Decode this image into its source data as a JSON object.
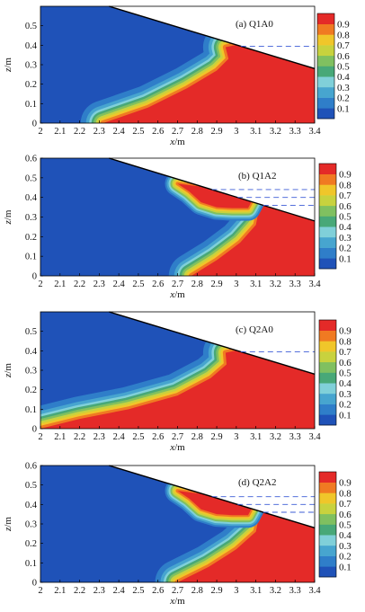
{
  "figure": {
    "colorbar": {
      "ticks": [
        "0.1",
        "0.2",
        "0.3",
        "0.4",
        "0.5",
        "0.6",
        "0.7",
        "0.8",
        "0.9"
      ],
      "colors": [
        "#1f52b8",
        "#2f7ec9",
        "#47a5cf",
        "#80d0d9",
        "#48a878",
        "#80c060",
        "#c8d23e",
        "#f0c62a",
        "#f07a22",
        "#e42a28"
      ]
    },
    "dash_color": "#3b5bd6"
  },
  "chart_data": [
    {
      "type": "contour",
      "panel_label": "(a) Q1A0",
      "xlabel_var": "x",
      "xlabel_unit": "/m",
      "ylabel_var": "z",
      "ylabel_unit": "/m",
      "xlim": [
        2,
        3.4
      ],
      "ylim": [
        0,
        0.6
      ],
      "xticks": [
        "2",
        "2.1",
        "2.2",
        "2.3",
        "2.4",
        "2.5",
        "2.6",
        "2.7",
        "2.8",
        "2.9",
        "3",
        "3.1",
        "3.2",
        "3.3",
        "3.4"
      ],
      "yticks": [
        "0",
        "0.1",
        "0.2",
        "0.3",
        "0.4",
        "0.5"
      ],
      "surface": [
        [
          2.35,
          0.6
        ],
        [
          3.4,
          0.28
        ]
      ],
      "dashed_levels": [
        0.395
      ],
      "interface": [
        [
          2.32,
          0.0
        ],
        [
          2.55,
          0.08
        ],
        [
          2.75,
          0.18
        ],
        [
          2.9,
          0.27
        ],
        [
          2.96,
          0.33
        ],
        [
          2.945,
          0.39
        ]
      ]
    },
    {
      "type": "contour",
      "panel_label": "(b) Q1A2",
      "xlabel_var": "x",
      "xlabel_unit": "/m",
      "ylabel_var": "z",
      "ylabel_unit": "/m",
      "xlim": [
        2,
        3.4
      ],
      "ylim": [
        0,
        0.6
      ],
      "xticks": [
        "2",
        "2.1",
        "2.2",
        "2.3",
        "2.4",
        "2.5",
        "2.6",
        "2.7",
        "2.8",
        "2.9",
        "3",
        "3.1",
        "3.2",
        "3.3",
        "3.4"
      ],
      "yticks": [
        "0",
        "0.1",
        "0.2",
        "0.3",
        "0.4",
        "0.5",
        "0.6"
      ],
      "surface": [
        [
          2.35,
          0.6
        ],
        [
          3.4,
          0.28
        ]
      ],
      "dashed_levels": [
        0.44,
        0.4,
        0.36
      ],
      "interface": [
        [
          2.77,
          0.0
        ],
        [
          2.9,
          0.08
        ],
        [
          3.02,
          0.17
        ],
        [
          3.1,
          0.26
        ],
        [
          3.11,
          0.31
        ],
        [
          3.08,
          0.345
        ]
      ],
      "pocket": [
        [
          2.76,
          0.43
        ],
        [
          2.82,
          0.375
        ],
        [
          2.9,
          0.35
        ],
        [
          2.98,
          0.345
        ],
        [
          3.06,
          0.345
        ]
      ]
    },
    {
      "type": "contour",
      "panel_label": "(c) Q2A0",
      "xlabel_var": "x",
      "xlabel_unit": "/m",
      "ylabel_var": "z",
      "ylabel_unit": "/m",
      "xlim": [
        2,
        3.4
      ],
      "ylim": [
        0,
        0.6
      ],
      "xticks": [
        "2",
        "2.1",
        "2.2",
        "2.3",
        "2.4",
        "2.5",
        "2.6",
        "2.7",
        "2.8",
        "2.9",
        "3",
        "3.1",
        "3.2",
        "3.3",
        "3.4"
      ],
      "yticks": [
        "0",
        "0.1",
        "0.2",
        "0.3",
        "0.4",
        "0.5"
      ],
      "surface": [
        [
          2.35,
          0.6
        ],
        [
          3.4,
          0.28
        ]
      ],
      "dashed_levels": [
        0.395
      ],
      "interface": [
        [
          2.0,
          0.0
        ],
        [
          2.2,
          0.05
        ],
        [
          2.45,
          0.1
        ],
        [
          2.7,
          0.17
        ],
        [
          2.87,
          0.26
        ],
        [
          2.95,
          0.33
        ],
        [
          2.945,
          0.39
        ]
      ]
    },
    {
      "type": "contour",
      "panel_label": "(d) Q2A2",
      "xlabel_var": "x",
      "xlabel_unit": "/m",
      "ylabel_var": "z",
      "ylabel_unit": "/m",
      "xlim": [
        2,
        3.4
      ],
      "ylim": [
        0,
        0.6
      ],
      "xticks": [
        "2",
        "2.1",
        "2.2",
        "2.3",
        "2.4",
        "2.5",
        "2.6",
        "2.7",
        "2.8",
        "2.9",
        "3",
        "3.1",
        "3.2",
        "3.3",
        "3.4"
      ],
      "yticks": [
        "0",
        "0.1",
        "0.2",
        "0.3",
        "0.4",
        "0.5",
        "0.6"
      ],
      "surface": [
        [
          2.35,
          0.6
        ],
        [
          3.4,
          0.28
        ]
      ],
      "dashed_levels": [
        0.44,
        0.4,
        0.36
      ],
      "interface": [
        [
          2.7,
          0.0
        ],
        [
          2.86,
          0.08
        ],
        [
          3.0,
          0.17
        ],
        [
          3.1,
          0.26
        ],
        [
          3.11,
          0.31
        ],
        [
          3.08,
          0.345
        ]
      ],
      "pocket": [
        [
          2.76,
          0.43
        ],
        [
          2.82,
          0.375
        ],
        [
          2.9,
          0.35
        ],
        [
          2.98,
          0.345
        ],
        [
          3.06,
          0.345
        ]
      ]
    }
  ]
}
